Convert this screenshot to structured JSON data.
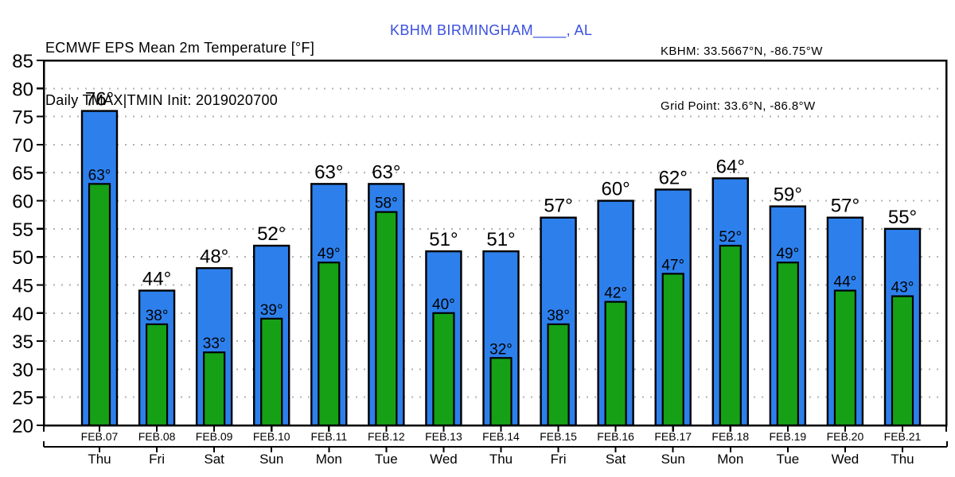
{
  "header": {
    "title_line1": "ECMWF EPS Mean 2m Temperature [°F]",
    "title_line2": "Daily TMAX|TMIN Init: 2019020700",
    "station_label": "KBHM BIRMINGHAM____, AL",
    "station_label_color": "#3A4FE0",
    "station_coords": "KBHM: 33.5667°N, -86.75°W",
    "grid_point": "Grid Point: 33.6°N, -86.8°W"
  },
  "chart_data": {
    "type": "bar",
    "title": "ECMWF EPS Mean 2m Temperature [°F]",
    "subtitle": "Daily TMAX|TMIN Init: 2019020700",
    "categories": [
      "FEB.07",
      "FEB.08",
      "FEB.09",
      "FEB.10",
      "FEB.11",
      "FEB.12",
      "FEB.13",
      "FEB.14",
      "FEB.15",
      "FEB.16",
      "FEB.17",
      "FEB.18",
      "FEB.19",
      "FEB.20",
      "FEB.21"
    ],
    "day_labels": [
      "Thu",
      "Fri",
      "Sat",
      "Sun",
      "Mon",
      "Tue",
      "Wed",
      "Thu",
      "Fri",
      "Sat",
      "Sun",
      "Mon",
      "Tue",
      "Wed",
      "Thu"
    ],
    "series": [
      {
        "name": "TMAX",
        "color": "#2D80EC",
        "values": [
          76,
          44,
          48,
          52,
          63,
          63,
          51,
          51,
          57,
          60,
          62,
          64,
          59,
          57,
          55
        ]
      },
      {
        "name": "TMIN",
        "color": "#16A016",
        "values": [
          63,
          38,
          33,
          39,
          49,
          58,
          40,
          32,
          38,
          42,
          47,
          52,
          49,
          44,
          43
        ]
      }
    ],
    "value_suffix": "°",
    "unit": "°F",
    "ylim": [
      20,
      85
    ],
    "ytick_step": 5,
    "grid": "horizontal-dotted",
    "gridline_color": "#b2b2b2",
    "bar_outline_color": "#000000",
    "legend": "none"
  }
}
